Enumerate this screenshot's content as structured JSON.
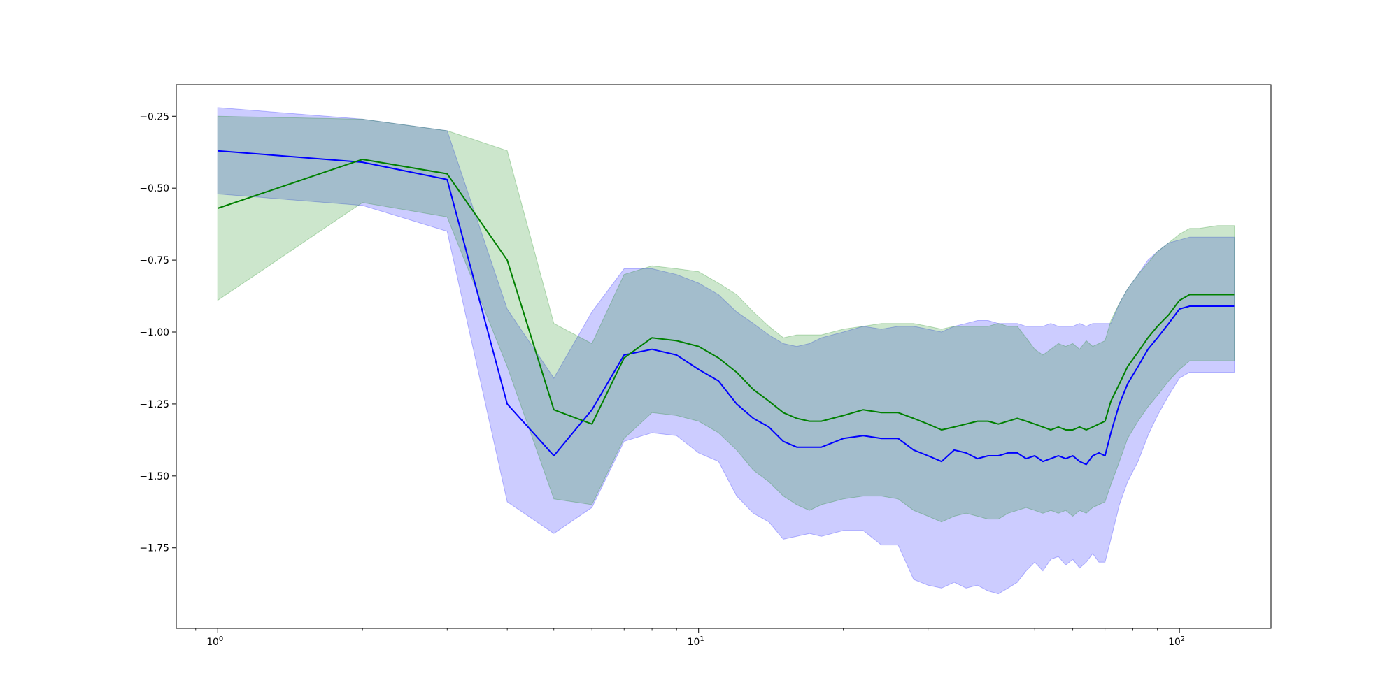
{
  "chart_data": {
    "type": "line",
    "title": "",
    "xlabel": "",
    "ylabel": "",
    "xscale": "log",
    "xlim": [
      0.82,
      155
    ],
    "ylim": [
      -2.03,
      -0.14
    ],
    "grid": false,
    "legend": "none",
    "x_ticks": [
      {
        "value": 1,
        "base": "10",
        "exp": "0"
      },
      {
        "value": 10,
        "base": "10",
        "exp": "1"
      },
      {
        "value": 100,
        "base": "10",
        "exp": "2"
      }
    ],
    "y_ticks": [
      {
        "value": -0.25,
        "label": "−0.25"
      },
      {
        "value": -0.5,
        "label": "−0.50"
      },
      {
        "value": -0.75,
        "label": "−0.75"
      },
      {
        "value": -1.0,
        "label": "−1.00"
      },
      {
        "value": -1.25,
        "label": "−1.25"
      },
      {
        "value": -1.5,
        "label": "−1.50"
      },
      {
        "value": -1.75,
        "label": "−1.75"
      }
    ],
    "series": [
      {
        "color": "#0000ff",
        "band_color": "#0000ff",
        "band_opacity": 0.2,
        "x": [
          1,
          2,
          3,
          4,
          5,
          6,
          7,
          8,
          9,
          10,
          11,
          12,
          13,
          14,
          15,
          16,
          17,
          18,
          20,
          22,
          24,
          26,
          28,
          30,
          32,
          34,
          36,
          38,
          40,
          42,
          44,
          46,
          48,
          50,
          52,
          54,
          56,
          58,
          60,
          62,
          64,
          66,
          68,
          70,
          72,
          75,
          78,
          82,
          86,
          90,
          95,
          100,
          105,
          110,
          120,
          130
        ],
        "y": [
          -0.37,
          -0.41,
          -0.47,
          -1.25,
          -1.43,
          -1.27,
          -1.08,
          -1.06,
          -1.08,
          -1.13,
          -1.17,
          -1.25,
          -1.3,
          -1.33,
          -1.38,
          -1.4,
          -1.4,
          -1.4,
          -1.37,
          -1.36,
          -1.37,
          -1.37,
          -1.41,
          -1.43,
          -1.45,
          -1.41,
          -1.42,
          -1.44,
          -1.43,
          -1.43,
          -1.42,
          -1.42,
          -1.44,
          -1.43,
          -1.45,
          -1.44,
          -1.43,
          -1.44,
          -1.43,
          -1.45,
          -1.46,
          -1.43,
          -1.42,
          -1.43,
          -1.35,
          -1.25,
          -1.18,
          -1.12,
          -1.06,
          -1.02,
          -0.97,
          -0.92,
          -0.91,
          -0.91,
          -0.91,
          -0.91
        ],
        "lower": [
          -0.52,
          -0.56,
          -0.65,
          -1.59,
          -1.7,
          -1.61,
          -1.38,
          -1.35,
          -1.36,
          -1.42,
          -1.45,
          -1.57,
          -1.63,
          -1.66,
          -1.72,
          -1.71,
          -1.7,
          -1.71,
          -1.69,
          -1.69,
          -1.74,
          -1.74,
          -1.86,
          -1.88,
          -1.89,
          -1.87,
          -1.89,
          -1.88,
          -1.9,
          -1.91,
          -1.89,
          -1.87,
          -1.83,
          -1.8,
          -1.83,
          -1.79,
          -1.78,
          -1.81,
          -1.79,
          -1.82,
          -1.8,
          -1.77,
          -1.8,
          -1.8,
          -1.72,
          -1.6,
          -1.52,
          -1.45,
          -1.36,
          -1.29,
          -1.22,
          -1.16,
          -1.14,
          -1.14,
          -1.14,
          -1.14
        ],
        "upper": [
          -0.22,
          -0.26,
          -0.3,
          -0.92,
          -1.16,
          -0.93,
          -0.78,
          -0.78,
          -0.8,
          -0.83,
          -0.87,
          -0.93,
          -0.97,
          -1.01,
          -1.04,
          -1.05,
          -1.04,
          -1.02,
          -1.0,
          -0.98,
          -0.99,
          -0.98,
          -0.98,
          -0.99,
          -1.0,
          -0.98,
          -0.97,
          -0.96,
          -0.96,
          -0.97,
          -0.97,
          -0.97,
          -0.98,
          -0.98,
          -0.98,
          -0.97,
          -0.98,
          -0.98,
          -0.98,
          -0.97,
          -0.98,
          -0.97,
          -0.97,
          -0.97,
          -0.97,
          -0.9,
          -0.85,
          -0.8,
          -0.75,
          -0.72,
          -0.69,
          -0.68,
          -0.67,
          -0.67,
          -0.67,
          -0.67
        ]
      },
      {
        "color": "#008000",
        "band_color": "#008000",
        "band_opacity": 0.2,
        "x": [
          1,
          2,
          3,
          4,
          5,
          6,
          7,
          8,
          9,
          10,
          11,
          12,
          13,
          14,
          15,
          16,
          17,
          18,
          20,
          22,
          24,
          26,
          28,
          30,
          32,
          34,
          36,
          38,
          40,
          42,
          44,
          46,
          48,
          50,
          52,
          54,
          56,
          58,
          60,
          62,
          64,
          66,
          68,
          70,
          72,
          75,
          78,
          82,
          86,
          90,
          95,
          100,
          105,
          110,
          120,
          130
        ],
        "y": [
          -0.57,
          -0.4,
          -0.45,
          -0.75,
          -1.27,
          -1.32,
          -1.09,
          -1.02,
          -1.03,
          -1.05,
          -1.09,
          -1.14,
          -1.2,
          -1.24,
          -1.28,
          -1.3,
          -1.31,
          -1.31,
          -1.29,
          -1.27,
          -1.28,
          -1.28,
          -1.3,
          -1.32,
          -1.34,
          -1.33,
          -1.32,
          -1.31,
          -1.31,
          -1.32,
          -1.31,
          -1.3,
          -1.31,
          -1.32,
          -1.33,
          -1.34,
          -1.33,
          -1.34,
          -1.34,
          -1.33,
          -1.34,
          -1.33,
          -1.32,
          -1.31,
          -1.24,
          -1.18,
          -1.12,
          -1.07,
          -1.02,
          -0.98,
          -0.94,
          -0.89,
          -0.87,
          -0.87,
          -0.87,
          -0.87
        ],
        "lower": [
          -0.89,
          -0.55,
          -0.6,
          -1.12,
          -1.58,
          -1.6,
          -1.37,
          -1.28,
          -1.29,
          -1.31,
          -1.35,
          -1.41,
          -1.48,
          -1.52,
          -1.57,
          -1.6,
          -1.62,
          -1.6,
          -1.58,
          -1.57,
          -1.57,
          -1.58,
          -1.62,
          -1.64,
          -1.66,
          -1.64,
          -1.63,
          -1.64,
          -1.65,
          -1.65,
          -1.63,
          -1.62,
          -1.61,
          -1.62,
          -1.63,
          -1.62,
          -1.63,
          -1.62,
          -1.64,
          -1.62,
          -1.63,
          -1.61,
          -1.6,
          -1.59,
          -1.53,
          -1.45,
          -1.37,
          -1.31,
          -1.26,
          -1.22,
          -1.17,
          -1.13,
          -1.1,
          -1.1,
          -1.1,
          -1.1
        ],
        "upper": [
          -0.25,
          -0.26,
          -0.3,
          -0.37,
          -0.97,
          -1.04,
          -0.8,
          -0.77,
          -0.78,
          -0.79,
          -0.83,
          -0.87,
          -0.93,
          -0.98,
          -1.02,
          -1.01,
          -1.01,
          -1.01,
          -0.99,
          -0.98,
          -0.97,
          -0.97,
          -0.97,
          -0.98,
          -0.99,
          -0.98,
          -0.98,
          -0.98,
          -0.98,
          -0.97,
          -0.98,
          -0.98,
          -1.02,
          -1.06,
          -1.08,
          -1.06,
          -1.04,
          -1.05,
          -1.04,
          -1.06,
          -1.03,
          -1.05,
          -1.04,
          -1.03,
          -0.96,
          -0.9,
          -0.85,
          -0.8,
          -0.76,
          -0.72,
          -0.69,
          -0.66,
          -0.64,
          -0.64,
          -0.63,
          -0.63
        ]
      }
    ]
  }
}
